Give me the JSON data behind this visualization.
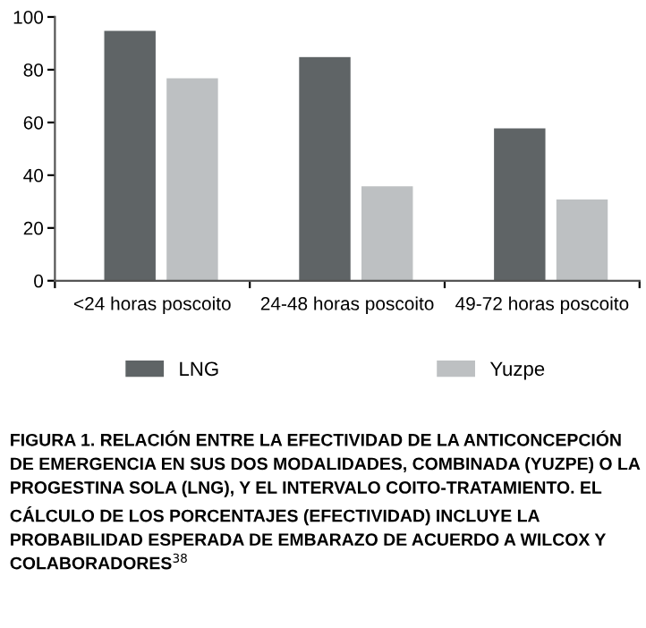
{
  "chart_data": {
    "type": "bar",
    "categories": [
      "<24 horas poscoito",
      "24-48 horas poscoito",
      "49-72 horas poscoito"
    ],
    "series": [
      {
        "name": "LNG",
        "color": "#5f6466",
        "values": [
          95,
          85,
          58
        ]
      },
      {
        "name": "Yuzpe",
        "color": "#bdc0c2",
        "values": [
          77,
          36,
          31
        ]
      }
    ],
    "ylim": [
      0,
      100
    ],
    "yticks": [
      0,
      20,
      40,
      60,
      80,
      100
    ],
    "grid": false,
    "legend": "bottom",
    "annotations": [
      "FIGURA 1. RELACIÓN ENTRE LA EFECTIVIDAD DE LA ANTICONCEPCIÓN DE EMERGENCIA EN SUS DOS MODALIDADES, COMBINADA (YUZPE) O LA PROGESTINA SOLA (LNG), Y EL INTERVALO COITO-TRATAMIENTO. EL CÁLCULO DE LOS PORCENTAJES (EFECTIVIDAD) INCLUYE LA PROBABILIDAD ESPERADA DE EMBARAZO DE ACUERDO A WILCOX Y COLABORADORES$^{38}$"
    ]
  }
}
